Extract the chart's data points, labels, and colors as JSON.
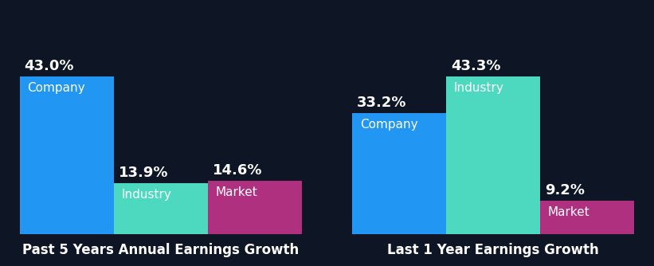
{
  "background_color": "#0e1525",
  "chart1": {
    "title": "Past 5 Years Annual Earnings Growth",
    "categories": [
      "Company",
      "Industry",
      "Market"
    ],
    "values": [
      43.0,
      13.9,
      14.6
    ],
    "colors": [
      "#2196f3",
      "#4dd9c0",
      "#b03080"
    ]
  },
  "chart2": {
    "title": "Last 1 Year Earnings Growth",
    "categories": [
      "Company",
      "Industry",
      "Market"
    ],
    "values": [
      33.2,
      43.3,
      9.2
    ],
    "colors": [
      "#2196f3",
      "#4dd9c0",
      "#b03080"
    ]
  },
  "value_fontsize": 13,
  "label_fontsize": 11,
  "title_fontsize": 12,
  "title_color": "#ffffff",
  "value_label_color": "#ffffff",
  "inner_label_color": "#ffffff",
  "bar_width": 1.0,
  "bar_gap": 0.0
}
